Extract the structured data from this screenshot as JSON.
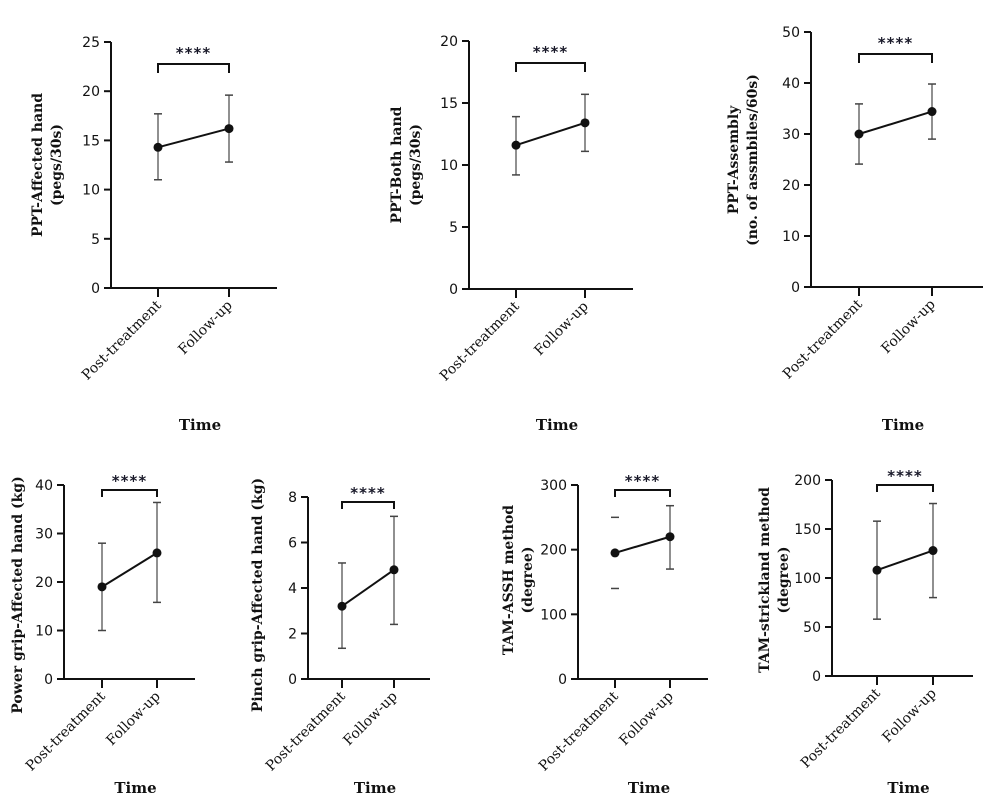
{
  "chart_data": [
    {
      "type": "line",
      "title": "",
      "xlabel": "Time",
      "ylabel": [
        "PPT-Affected hand",
        "(pegs/30s)"
      ],
      "categories": [
        "Post-treatment",
        "Follow-up"
      ],
      "ylim": [
        0,
        25
      ],
      "yticks": [
        0,
        5,
        10,
        15,
        20,
        25
      ],
      "values": [
        14.3,
        16.2
      ],
      "error_low": [
        11.0,
        12.8
      ],
      "error_high": [
        17.7,
        19.6
      ],
      "significance": "****",
      "grid": false
    },
    {
      "type": "line",
      "title": "",
      "xlabel": "Time",
      "ylabel": [
        "PPT-Both hand",
        "(pegs/30s)"
      ],
      "categories": [
        "Post-treatment",
        "Follow-up"
      ],
      "ylim": [
        0,
        20
      ],
      "yticks": [
        0,
        5,
        10,
        15,
        20
      ],
      "values": [
        11.6,
        13.4
      ],
      "error_low": [
        9.2,
        11.1
      ],
      "error_high": [
        13.9,
        15.7
      ],
      "significance": "****",
      "grid": false
    },
    {
      "type": "line",
      "title": "",
      "xlabel": "Time",
      "ylabel": [
        "PPT-Assembly",
        "(no. of assmbiles/60s)"
      ],
      "categories": [
        "Post-treatment",
        "Follow-up"
      ],
      "ylim": [
        0,
        50
      ],
      "yticks": [
        0,
        10,
        20,
        30,
        40,
        50
      ],
      "values": [
        30.0,
        34.4
      ],
      "error_low": [
        24.1,
        29.0
      ],
      "error_high": [
        35.9,
        39.8
      ],
      "significance": "****",
      "grid": false
    },
    {
      "type": "line",
      "title": "",
      "xlabel": "Time",
      "ylabel": [
        "Power grip-Affected hand (kg)"
      ],
      "categories": [
        "Post-treatment",
        "Follow-up"
      ],
      "ylim": [
        0,
        40
      ],
      "yticks": [
        0,
        10,
        20,
        30,
        40
      ],
      "values": [
        19.0,
        26.0
      ],
      "error_low": [
        10.0,
        15.8
      ],
      "error_high": [
        28.0,
        36.4
      ],
      "significance": "****",
      "grid": false
    },
    {
      "type": "line",
      "title": "",
      "xlabel": "Time",
      "ylabel": [
        "Pinch grip-Affected hand (kg)"
      ],
      "categories": [
        "Post-treatment",
        "Follow-up"
      ],
      "ylim": [
        0,
        8
      ],
      "yticks": [
        0,
        2,
        4,
        6,
        8
      ],
      "values": [
        3.2,
        4.8
      ],
      "error_low": [
        1.35,
        2.4
      ],
      "error_high": [
        5.1,
        7.15
      ],
      "significance": "****",
      "grid": false
    },
    {
      "type": "line",
      "title": "",
      "xlabel": "Time",
      "ylabel": [
        "TAM-ASSH method",
        "(degree)"
      ],
      "categories": [
        "Post-treatment",
        "Follow-up"
      ],
      "ylim": [
        0,
        300
      ],
      "yticks": [
        0,
        100,
        200,
        300
      ],
      "values": [
        195,
        220
      ],
      "error_low": [
        140,
        170
      ],
      "error_high": [
        250,
        268
      ],
      "error_caps_only": [
        true,
        false
      ],
      "significance": "****",
      "grid": false
    },
    {
      "type": "line",
      "title": "",
      "xlabel": "Time",
      "ylabel": [
        "TAM-strickland method",
        "(degree)"
      ],
      "categories": [
        "Post-treatment",
        "Follow-up"
      ],
      "ylim": [
        0,
        200
      ],
      "yticks": [
        0,
        50,
        100,
        150,
        200
      ],
      "values": [
        108,
        128
      ],
      "error_low": [
        58,
        80
      ],
      "error_high": [
        158,
        176
      ],
      "significance": "****",
      "grid": false
    }
  ]
}
